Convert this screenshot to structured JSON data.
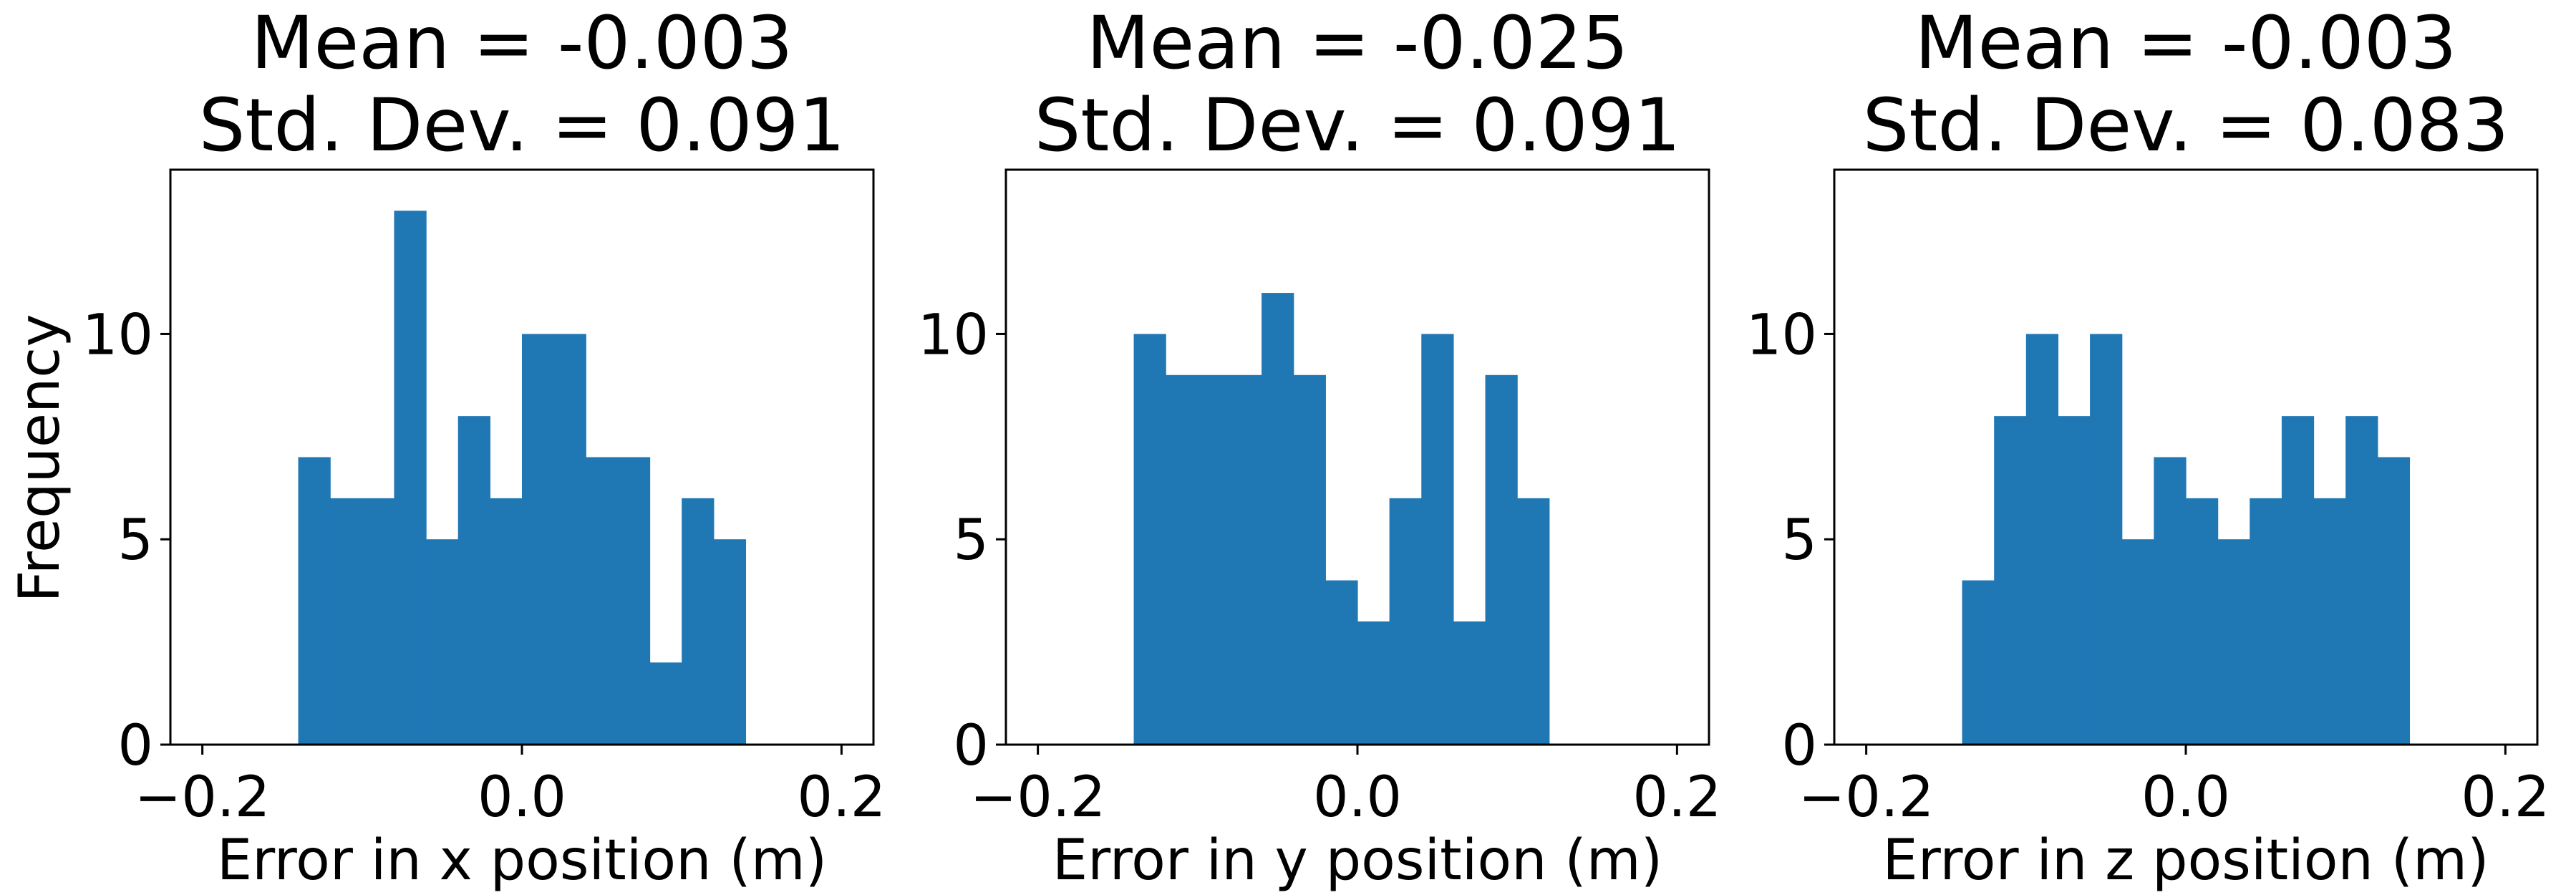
{
  "figure": {
    "ylabel_shared": "Frequency"
  },
  "chart_data": [
    {
      "type": "bar",
      "title_line1": "Mean = -0.003",
      "title_line2": "Std. Dev. = 0.091",
      "xlabel": "Error in x position (m)",
      "ylabel": "Frequency",
      "xlim": [
        -0.22,
        0.22
      ],
      "ylim": [
        0,
        14
      ],
      "xticks": [
        -0.2,
        0.0,
        0.2
      ],
      "xtick_labels": [
        "−0.2",
        "0.0",
        "0.2"
      ],
      "yticks": [
        0,
        5,
        10
      ],
      "ytick_labels": [
        "0",
        "5",
        "10"
      ],
      "bin_start": -0.14,
      "bin_width": 0.02,
      "values": [
        7,
        6,
        6,
        13,
        5,
        8,
        6,
        10,
        10,
        7,
        7,
        2,
        6,
        5
      ],
      "color": "#1f77b4",
      "grid": false
    },
    {
      "type": "bar",
      "title_line1": "Mean = -0.025",
      "title_line2": "Std. Dev. = 0.091",
      "xlabel": "Error in y position (m)",
      "ylabel": "",
      "xlim": [
        -0.22,
        0.22
      ],
      "ylim": [
        0,
        14
      ],
      "xticks": [
        -0.2,
        0.0,
        0.2
      ],
      "xtick_labels": [
        "−0.2",
        "0.0",
        "0.2"
      ],
      "yticks": [
        0,
        5,
        10
      ],
      "ytick_labels": [
        "0",
        "5",
        "10"
      ],
      "bin_start": -0.14,
      "bin_width": 0.02,
      "values": [
        10,
        9,
        9,
        9,
        11,
        9,
        4,
        3,
        6,
        10,
        3,
        9,
        6
      ],
      "color": "#1f77b4",
      "grid": false
    },
    {
      "type": "bar",
      "title_line1": "Mean = -0.003",
      "title_line2": "Std. Dev. = 0.083",
      "xlabel": "Error in z position (m)",
      "ylabel": "",
      "xlim": [
        -0.22,
        0.22
      ],
      "ylim": [
        0,
        14
      ],
      "xticks": [
        -0.2,
        0.0,
        0.2
      ],
      "xtick_labels": [
        "−0.2",
        "0.0",
        "0.2"
      ],
      "yticks": [
        0,
        5,
        10
      ],
      "ytick_labels": [
        "0",
        "5",
        "10"
      ],
      "bin_start": -0.14,
      "bin_width": 0.02,
      "values": [
        4,
        8,
        10,
        8,
        10,
        5,
        7,
        6,
        5,
        6,
        8,
        6,
        8,
        7
      ],
      "color": "#1f77b4",
      "grid": false
    }
  ]
}
